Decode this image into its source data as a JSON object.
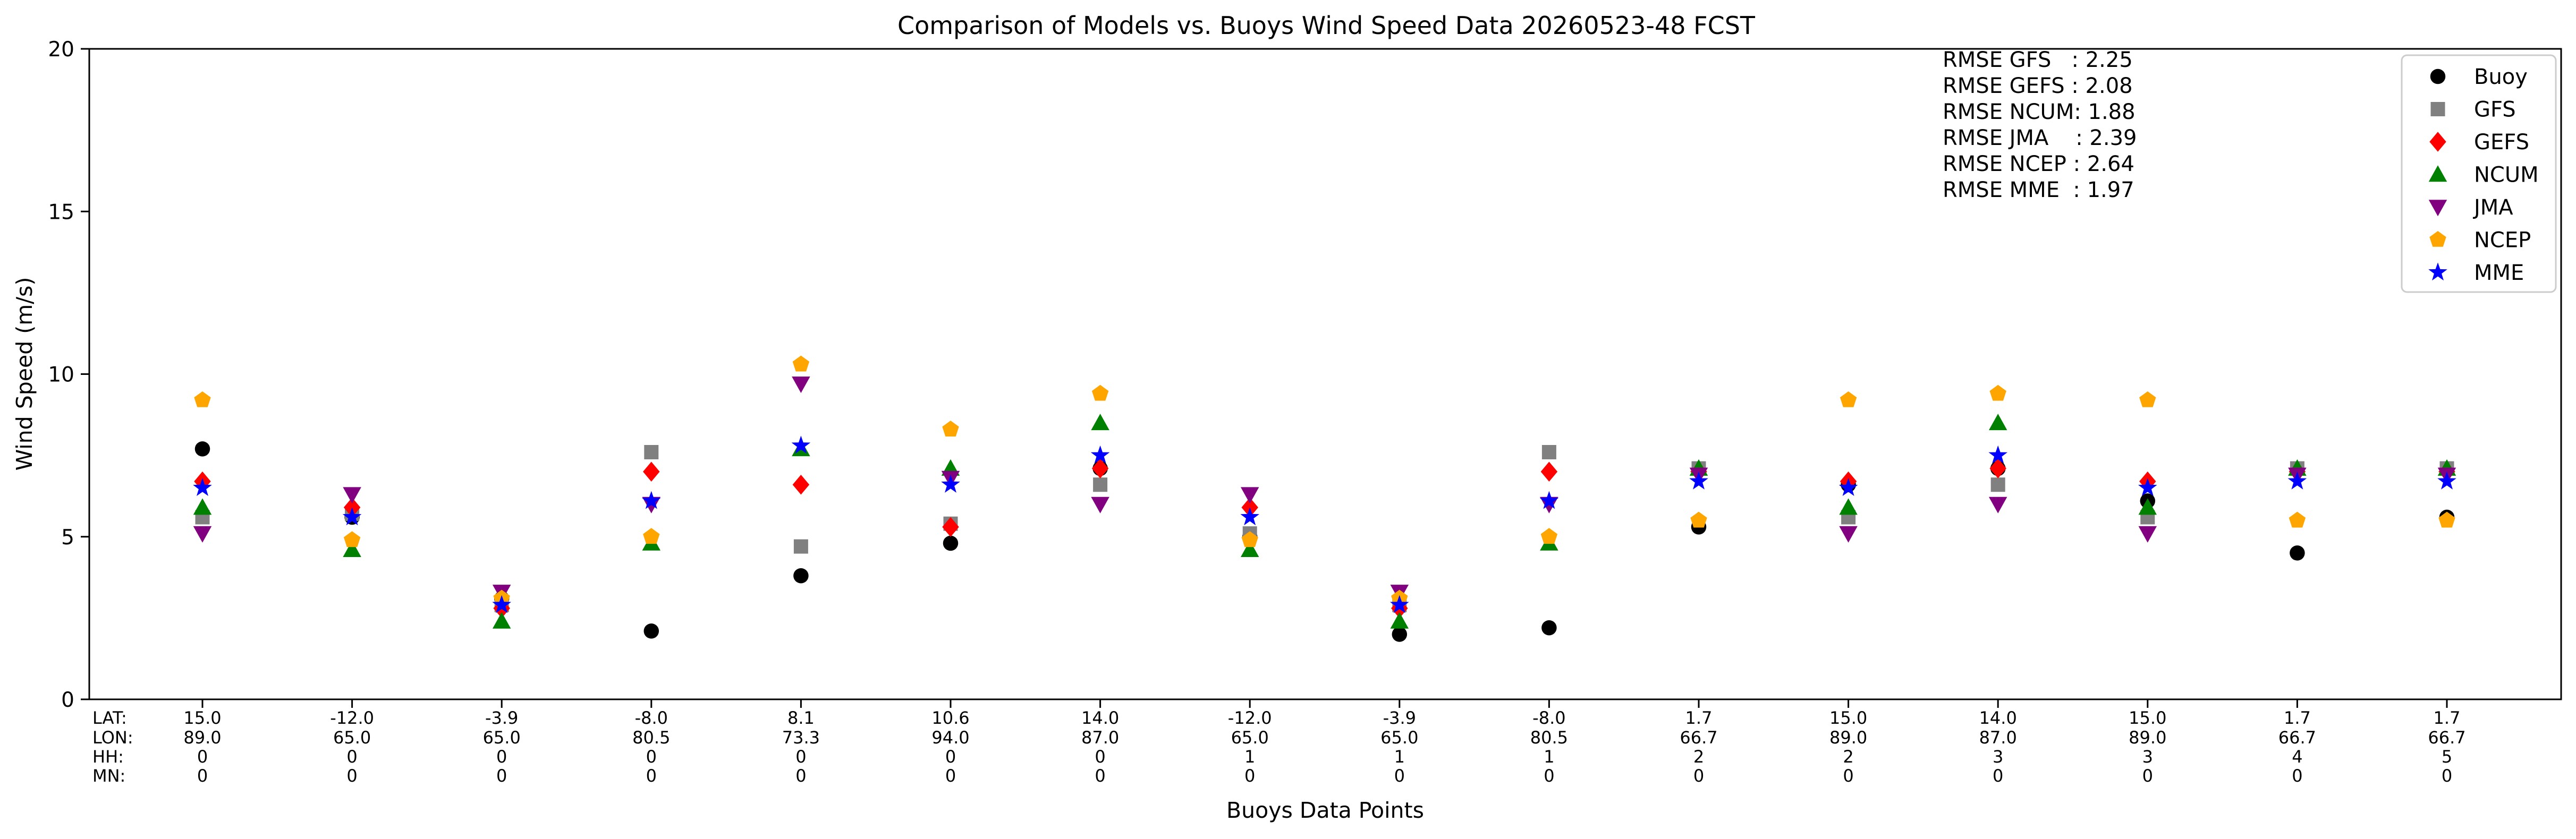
{
  "chart_data": {
    "type": "scatter",
    "title": "Comparison of Models vs. Buoys Wind Speed Data 20260523-48 FCST",
    "xlabel": "Buoys Data Points",
    "ylabel": "Wind Speed (m/s)",
    "ylim": [
      0,
      20
    ],
    "yticks": [
      "0",
      "5",
      "10",
      "15",
      "20"
    ],
    "grid": false,
    "legend_position": "top-right",
    "tick_row_labels": [
      "LAT:",
      "LON:",
      "HH:",
      "MN:"
    ],
    "points": [
      {
        "lat": "15.0",
        "lon": "89.0",
        "hh": "0",
        "mn": "0"
      },
      {
        "lat": "-12.0",
        "lon": "65.0",
        "hh": "0",
        "mn": "0"
      },
      {
        "lat": "-3.9",
        "lon": "65.0",
        "hh": "0",
        "mn": "0"
      },
      {
        "lat": "-8.0",
        "lon": "80.5",
        "hh": "0",
        "mn": "0"
      },
      {
        "lat": "8.1",
        "lon": "73.3",
        "hh": "0",
        "mn": "0"
      },
      {
        "lat": "10.6",
        "lon": "94.0",
        "hh": "0",
        "mn": "0"
      },
      {
        "lat": "14.0",
        "lon": "87.0",
        "hh": "0",
        "mn": "0"
      },
      {
        "lat": "-12.0",
        "lon": "65.0",
        "hh": "1",
        "mn": "0"
      },
      {
        "lat": "-3.9",
        "lon": "65.0",
        "hh": "1",
        "mn": "0"
      },
      {
        "lat": "-8.0",
        "lon": "80.5",
        "hh": "1",
        "mn": "0"
      },
      {
        "lat": "1.7",
        "lon": "66.7",
        "hh": "2",
        "mn": "0"
      },
      {
        "lat": "15.0",
        "lon": "89.0",
        "hh": "2",
        "mn": "0"
      },
      {
        "lat": "14.0",
        "lon": "87.0",
        "hh": "3",
        "mn": "0"
      },
      {
        "lat": "15.0",
        "lon": "89.0",
        "hh": "3",
        "mn": "0"
      },
      {
        "lat": "1.7",
        "lon": "66.7",
        "hh": "4",
        "mn": "0"
      },
      {
        "lat": "1.7",
        "lon": "66.7",
        "hh": "5",
        "mn": "0"
      }
    ],
    "series": [
      {
        "name": "Buoy",
        "color": "#000000",
        "marker": "circle",
        "values": [
          7.7,
          5.6,
          3.1,
          2.1,
          3.8,
          4.8,
          7.1,
          5.0,
          2.0,
          2.2,
          5.3,
          6.6,
          7.1,
          6.1,
          4.5,
          5.6
        ]
      },
      {
        "name": "GFS",
        "color": "#808080",
        "marker": "square",
        "values": [
          5.6,
          5.7,
          2.9,
          7.6,
          4.7,
          5.4,
          6.6,
          5.1,
          2.9,
          7.6,
          7.1,
          5.6,
          6.6,
          5.6,
          7.1,
          7.1
        ]
      },
      {
        "name": "GEFS",
        "color": "#ff0000",
        "marker": "diamond",
        "values": [
          6.7,
          5.9,
          2.8,
          7.0,
          6.6,
          5.3,
          7.1,
          5.9,
          2.8,
          7.0,
          7.0,
          6.7,
          7.1,
          6.7,
          7.0,
          7.0
        ]
      },
      {
        "name": "NCUM",
        "color": "#008000",
        "marker": "triangle-up",
        "values": [
          5.9,
          4.6,
          2.4,
          4.8,
          7.7,
          7.1,
          8.5,
          4.6,
          2.4,
          4.8,
          7.1,
          5.9,
          8.5,
          5.9,
          7.1,
          7.1
        ]
      },
      {
        "name": "JMA",
        "color": "#800080",
        "marker": "triangle-down",
        "values": [
          5.1,
          6.3,
          3.3,
          6.0,
          9.7,
          6.8,
          6.0,
          6.3,
          3.3,
          6.0,
          6.9,
          5.1,
          6.0,
          5.1,
          6.9,
          6.9
        ]
      },
      {
        "name": "NCEP",
        "color": "#ffa500",
        "marker": "pentagon",
        "values": [
          9.2,
          4.9,
          3.1,
          5.0,
          10.3,
          8.3,
          9.4,
          4.9,
          3.1,
          5.0,
          5.5,
          9.2,
          9.4,
          9.2,
          5.5,
          5.5
        ]
      },
      {
        "name": "MME",
        "color": "#0000ff",
        "marker": "star",
        "values": [
          6.5,
          5.6,
          2.9,
          6.1,
          7.8,
          6.6,
          7.5,
          5.6,
          2.9,
          6.1,
          6.7,
          6.5,
          7.5,
          6.5,
          6.7,
          6.7
        ]
      }
    ],
    "rmse_lines": [
      "RMSE GFS   : 2.25",
      "RMSE GEFS : 2.08",
      "RMSE NCUM: 1.88",
      "RMSE JMA    : 2.39",
      "RMSE NCEP : 2.64",
      "RMSE MME  : 1.97"
    ]
  }
}
